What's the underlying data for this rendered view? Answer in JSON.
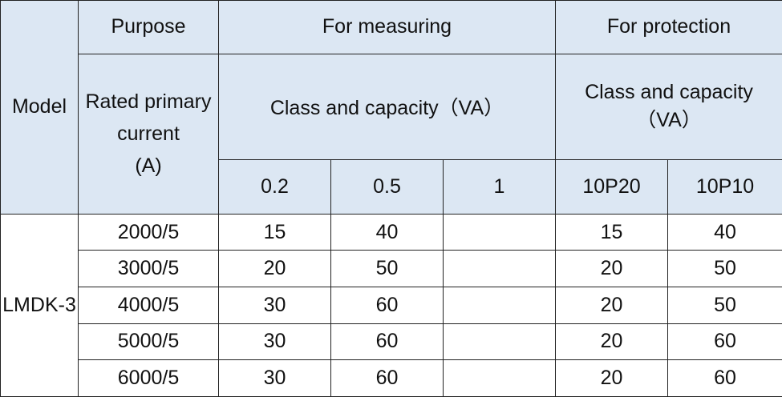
{
  "table": {
    "header": {
      "model": "Model",
      "purpose": "Purpose",
      "for_measuring": "For measuring",
      "for_protection": "For protection",
      "rated_primary_current": "Rated primary current",
      "unit": "(A)",
      "measuring_class": "Class and capacity（VA）",
      "protection_class": "Class and capacity（VA）",
      "classes": [
        "0.2",
        "0.5",
        "1",
        "10P20",
        "10P10"
      ]
    },
    "model": "LMDK-3",
    "rows": [
      [
        "2000/5",
        15,
        40,
        null,
        15,
        40
      ],
      [
        "3000/5",
        20,
        50,
        null,
        20,
        50
      ],
      [
        "4000/5",
        30,
        60,
        null,
        20,
        50
      ],
      [
        "5000/5",
        30,
        60,
        null,
        20,
        60
      ],
      [
        "6000/5",
        30,
        60,
        null,
        20,
        60
      ]
    ]
  }
}
